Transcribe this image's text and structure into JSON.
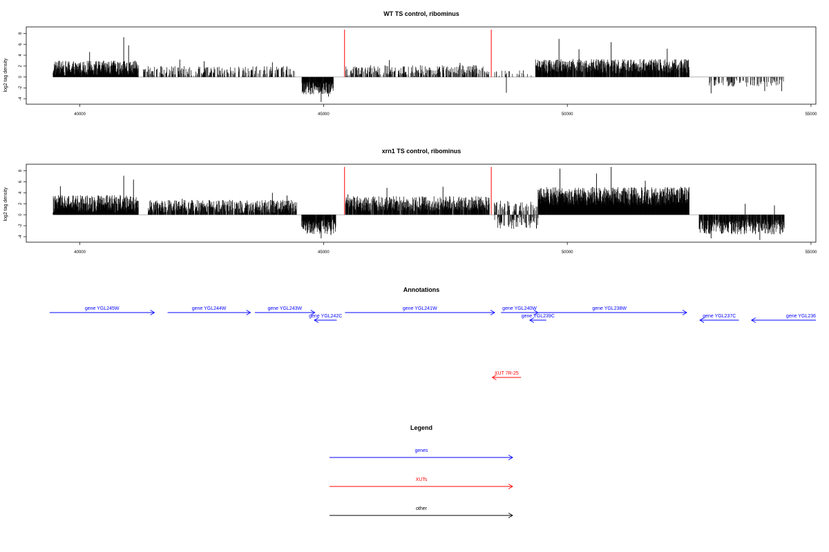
{
  "colors": {
    "genes": "#0000ff",
    "xuts": "#ff0000",
    "other": "#000000",
    "marker": "#ff0000",
    "bars": "#000000"
  },
  "chart_data": [
    {
      "type": "bar",
      "title": "WT TS control, ribominus",
      "ylabel": "log2 tag density",
      "xlim": [
        38900,
        55100
      ],
      "ylim": [
        -5,
        9.2
      ],
      "xticks": [
        40000,
        45000,
        50000,
        55000
      ],
      "yticks": [
        -4,
        -2,
        0,
        2,
        4,
        6,
        8
      ],
      "markers_x": [
        45430,
        48440
      ],
      "grid": false,
      "series": [
        {
          "x": [
            39450,
            41200
          ],
          "mean": 1.6,
          "var": 1.4,
          "peaks": [
            [
              40900,
              7.3
            ],
            [
              41000,
              5.8
            ],
            [
              40200,
              4.6
            ]
          ],
          "density": 1,
          "sign": 1
        },
        {
          "x": [
            41300,
            44400
          ],
          "mean": 1.1,
          "var": 0.9,
          "peaks": [
            [
              42050,
              3.2
            ],
            [
              42550,
              2.9
            ],
            [
              43950,
              2.7
            ]
          ],
          "density": 0.32,
          "sign": 1
        },
        {
          "x": [
            44550,
            45200
          ],
          "mean": -2.0,
          "var": 1.2,
          "peaks": [
            [
              44950,
              -4.6
            ],
            [
              45100,
              -3.6
            ]
          ],
          "density": 0.9,
          "sign": -1
        },
        {
          "x": [
            45450,
            48400
          ],
          "mean": 1.2,
          "var": 1.0,
          "peaks": [
            [
              46350,
              3.1
            ],
            [
              47800,
              2.6
            ]
          ],
          "density": 0.42,
          "sign": 1
        },
        {
          "x": [
            48500,
            49300
          ],
          "mean": 0.7,
          "var": 0.5,
          "peaks": [
            [
              48750,
              -2.9
            ],
            [
              49100,
              1.2
            ]
          ],
          "density": 0.15,
          "sign": 1
        },
        {
          "x": [
            49350,
            52500
          ],
          "mean": 2.0,
          "var": 1.3,
          "peaks": [
            [
              49830,
              7.0
            ],
            [
              50900,
              6.4
            ],
            [
              52050,
              5.2
            ],
            [
              50240,
              5.1
            ]
          ],
          "density": 0.85,
          "sign": 1
        },
        {
          "x": [
            52900,
            54450
          ],
          "mean": -1.0,
          "var": 0.8,
          "peaks": [
            [
              52950,
              -3.0
            ],
            [
              54400,
              -2.6
            ],
            [
              54050,
              -2.6
            ]
          ],
          "density": 0.25,
          "sign": -1
        }
      ]
    },
    {
      "type": "bar",
      "title": "xrn1 TS control, ribominus",
      "ylabel": "log2 tag density",
      "xlim": [
        38900,
        55100
      ],
      "ylim": [
        -5,
        9.2
      ],
      "xticks": [
        40000,
        45000,
        50000,
        55000
      ],
      "yticks": [
        -4,
        -2,
        0,
        2,
        4,
        6,
        8
      ],
      "markers_x": [
        45430,
        48440
      ],
      "grid": false,
      "series": [
        {
          "x": [
            39450,
            41200
          ],
          "mean": 2.0,
          "var": 1.6,
          "peaks": [
            [
              40900,
              7.1
            ],
            [
              41100,
              6.4
            ],
            [
              39600,
              5.2
            ]
          ],
          "density": 1,
          "sign": 1
        },
        {
          "x": [
            41400,
            44450
          ],
          "mean": 1.5,
          "var": 1.2,
          "peaks": [
            [
              42100,
              2.9
            ],
            [
              43950,
              4.0
            ],
            [
              44250,
              3.5
            ]
          ],
          "density": 0.75,
          "sign": 1
        },
        {
          "x": [
            44550,
            45250
          ],
          "mean": -2.2,
          "var": 1.3,
          "peaks": [
            [
              44950,
              -4.3
            ],
            [
              45150,
              -3.7
            ]
          ],
          "density": 0.9,
          "sign": -1
        },
        {
          "x": [
            45450,
            48400
          ],
          "mean": 2.0,
          "var": 1.4,
          "peaks": [
            [
              47450,
              5.1
            ],
            [
              46300,
              4.9
            ],
            [
              45500,
              3.7
            ]
          ],
          "density": 0.85,
          "sign": 1
        },
        {
          "x": [
            48500,
            49400
          ],
          "mean": -0.8,
          "var": 1.4,
          "peaks": [
            [
              48950,
              -2.2
            ],
            [
              49150,
              -2.3
            ]
          ],
          "density": 0.6,
          "sign": 0
        },
        {
          "x": [
            49400,
            52500
          ],
          "mean": 3.4,
          "var": 1.7,
          "peaks": [
            [
              49850,
              8.4
            ],
            [
              50900,
              8.7
            ],
            [
              50600,
              7.5
            ],
            [
              51600,
              6.2
            ]
          ],
          "density": 1,
          "sign": 1
        },
        {
          "x": [
            52700,
            54450
          ],
          "mean": -2.2,
          "var": 1.4,
          "peaks": [
            [
              52950,
              -4.3
            ],
            [
              53950,
              -4.6
            ],
            [
              53650,
              2.0
            ],
            [
              54250,
              1.7
            ]
          ],
          "density": 0.85,
          "sign": -1
        }
      ]
    }
  ],
  "annotations": {
    "title": "Annotations",
    "xlim": [
      38900,
      55100
    ],
    "features": [
      {
        "label": "gene YGL245W",
        "start": 39380,
        "end": 41530,
        "strand": "+",
        "row": 0,
        "kind": "genes"
      },
      {
        "label": "gene YGL244W",
        "start": 41800,
        "end": 43500,
        "strand": "+",
        "row": 0,
        "kind": "genes"
      },
      {
        "label": "gene YGL243W",
        "start": 43590,
        "end": 44820,
        "strand": "+",
        "row": 0,
        "kind": "genes"
      },
      {
        "label": "gene YGL242C",
        "start": 44810,
        "end": 45270,
        "strand": "-",
        "row": 1,
        "kind": "genes"
      },
      {
        "label": "gene YGL241W",
        "start": 45440,
        "end": 48510,
        "strand": "+",
        "row": 0,
        "kind": "genes"
      },
      {
        "label": "gene YGL240W",
        "start": 48640,
        "end": 49400,
        "strand": "+",
        "row": 0,
        "kind": "genes"
      },
      {
        "label": "gene YGL239C",
        "start": 49230,
        "end": 49570,
        "strand": "-",
        "row": 1,
        "kind": "genes"
      },
      {
        "label": "gene YGL238W",
        "start": 49280,
        "end": 52450,
        "strand": "+",
        "row": 0,
        "kind": "genes"
      },
      {
        "label": "gene YGL237C",
        "start": 52720,
        "end": 53520,
        "strand": "-",
        "row": 1,
        "kind": "genes"
      },
      {
        "label": "gene YGL236",
        "start": 53780,
        "end": 55100,
        "strand": "-",
        "row": 1,
        "kind": "genes"
      },
      {
        "label": "XUT 7R-25",
        "start": 48460,
        "end": 49050,
        "strand": "-",
        "row": 2,
        "kind": "xuts"
      }
    ]
  },
  "legend": {
    "title": "Legend",
    "items": [
      {
        "label": "genes",
        "kind": "genes"
      },
      {
        "label": "XUTs",
        "kind": "xuts"
      },
      {
        "label": "other",
        "kind": "other"
      }
    ]
  }
}
